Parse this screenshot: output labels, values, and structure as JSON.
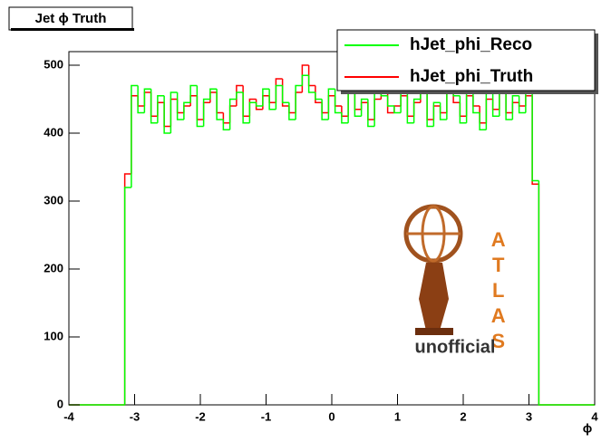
{
  "chart_data": {
    "type": "histogram",
    "title": "Jet ϕ Truth",
    "x_label": "ϕ",
    "logo_text": "ATLAS",
    "logo_subtitle": "unofficial",
    "legend_position": "top-right",
    "xlim": [
      -4,
      4
    ],
    "ylim": [
      0,
      520
    ],
    "xticks": [
      -4,
      -3,
      -2,
      -1,
      0,
      1,
      2,
      3,
      4
    ],
    "yticks": [
      0,
      100,
      200,
      300,
      400,
      500
    ],
    "bins": [
      -4,
      -3.15,
      -3.05,
      -2.95,
      -2.85,
      -2.75,
      -2.65,
      -2.55,
      -2.45,
      -2.35,
      -2.25,
      -2.15,
      -2.05,
      -1.95,
      -1.85,
      -1.75,
      -1.65,
      -1.55,
      -1.45,
      -1.35,
      -1.25,
      -1.15,
      -1.05,
      -0.95,
      -0.85,
      -0.75,
      -0.65,
      -0.55,
      -0.45,
      -0.35,
      -0.25,
      -0.15,
      -0.05,
      0.05,
      0.15,
      0.25,
      0.35,
      0.45,
      0.55,
      0.65,
      0.75,
      0.85,
      0.95,
      1.05,
      1.15,
      1.25,
      1.35,
      1.45,
      1.55,
      1.65,
      1.75,
      1.85,
      1.95,
      2.05,
      2.15,
      2.25,
      2.35,
      2.45,
      2.55,
      2.65,
      2.75,
      2.85,
      2.95,
      3.05,
      3.15,
      4
    ],
    "series": [
      {
        "name": "hJet_phi_Truth",
        "color": "#ff0000",
        "values": [
          0,
          340,
          455,
          440,
          460,
          425,
          445,
          410,
          450,
          430,
          440,
          455,
          420,
          445,
          460,
          430,
          415,
          440,
          470,
          425,
          450,
          435,
          455,
          445,
          480,
          440,
          430,
          460,
          500,
          470,
          445,
          430,
          455,
          440,
          425,
          460,
          435,
          445,
          420,
          450,
          465,
          430,
          440,
          455,
          425,
          445,
          460,
          420,
          440,
          430,
          470,
          445,
          425,
          455,
          440,
          415,
          450,
          435,
          460,
          430,
          445,
          440,
          455,
          325,
          0
        ]
      },
      {
        "name": "hJet_phi_Reco",
        "color": "#00ff00",
        "values": [
          0,
          320,
          470,
          430,
          465,
          415,
          455,
          400,
          460,
          420,
          445,
          470,
          410,
          450,
          465,
          420,
          405,
          450,
          460,
          415,
          445,
          440,
          465,
          435,
          470,
          445,
          420,
          470,
          485,
          460,
          450,
          420,
          465,
          430,
          415,
          470,
          425,
          450,
          410,
          460,
          455,
          440,
          430,
          465,
          415,
          450,
          470,
          410,
          445,
          420,
          460,
          455,
          415,
          465,
          430,
          405,
          460,
          425,
          470,
          420,
          455,
          430,
          465,
          330,
          0
        ]
      }
    ]
  }
}
